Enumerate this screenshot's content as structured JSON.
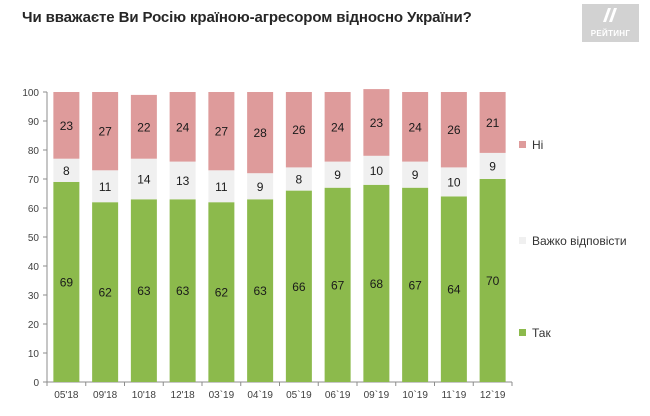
{
  "title": "Чи вважаєте Ви Росію країною-агресором відносно України?",
  "brand": {
    "label": "РЕЙТИНГ"
  },
  "chart_data": {
    "type": "bar",
    "stacked": true,
    "categories": [
      "05'18",
      "09'18",
      "10'18",
      "12'18",
      "03`19",
      "04`19",
      "05`19",
      "06`19",
      "09`19",
      "10`19",
      "11`19",
      "12`19"
    ],
    "series": [
      {
        "name": "Так",
        "values": [
          69,
          62,
          63,
          63,
          62,
          63,
          66,
          67,
          68,
          67,
          64,
          70
        ],
        "color": "#8cba4c",
        "label_color": "#1a1a1a"
      },
      {
        "name": "Важко відповісти",
        "values": [
          8,
          11,
          14,
          13,
          11,
          9,
          8,
          9,
          10,
          9,
          10,
          9
        ],
        "color": "#f0f0f0",
        "label_color": "#1a1a1a"
      },
      {
        "name": "Ні",
        "values": [
          23,
          27,
          22,
          24,
          27,
          28,
          26,
          24,
          23,
          24,
          26,
          21
        ],
        "color": "#de9b9b",
        "label_color": "#1a1a1a"
      }
    ],
    "yticks": [
      0,
      10,
      20,
      30,
      40,
      50,
      60,
      70,
      80,
      90,
      100
    ],
    "ylim": [
      0,
      100
    ],
    "xlabel": "",
    "ylabel": "",
    "grid": false,
    "legend": "right",
    "legend_order": [
      "Ні",
      "Важко відповісти",
      "Так"
    ]
  }
}
